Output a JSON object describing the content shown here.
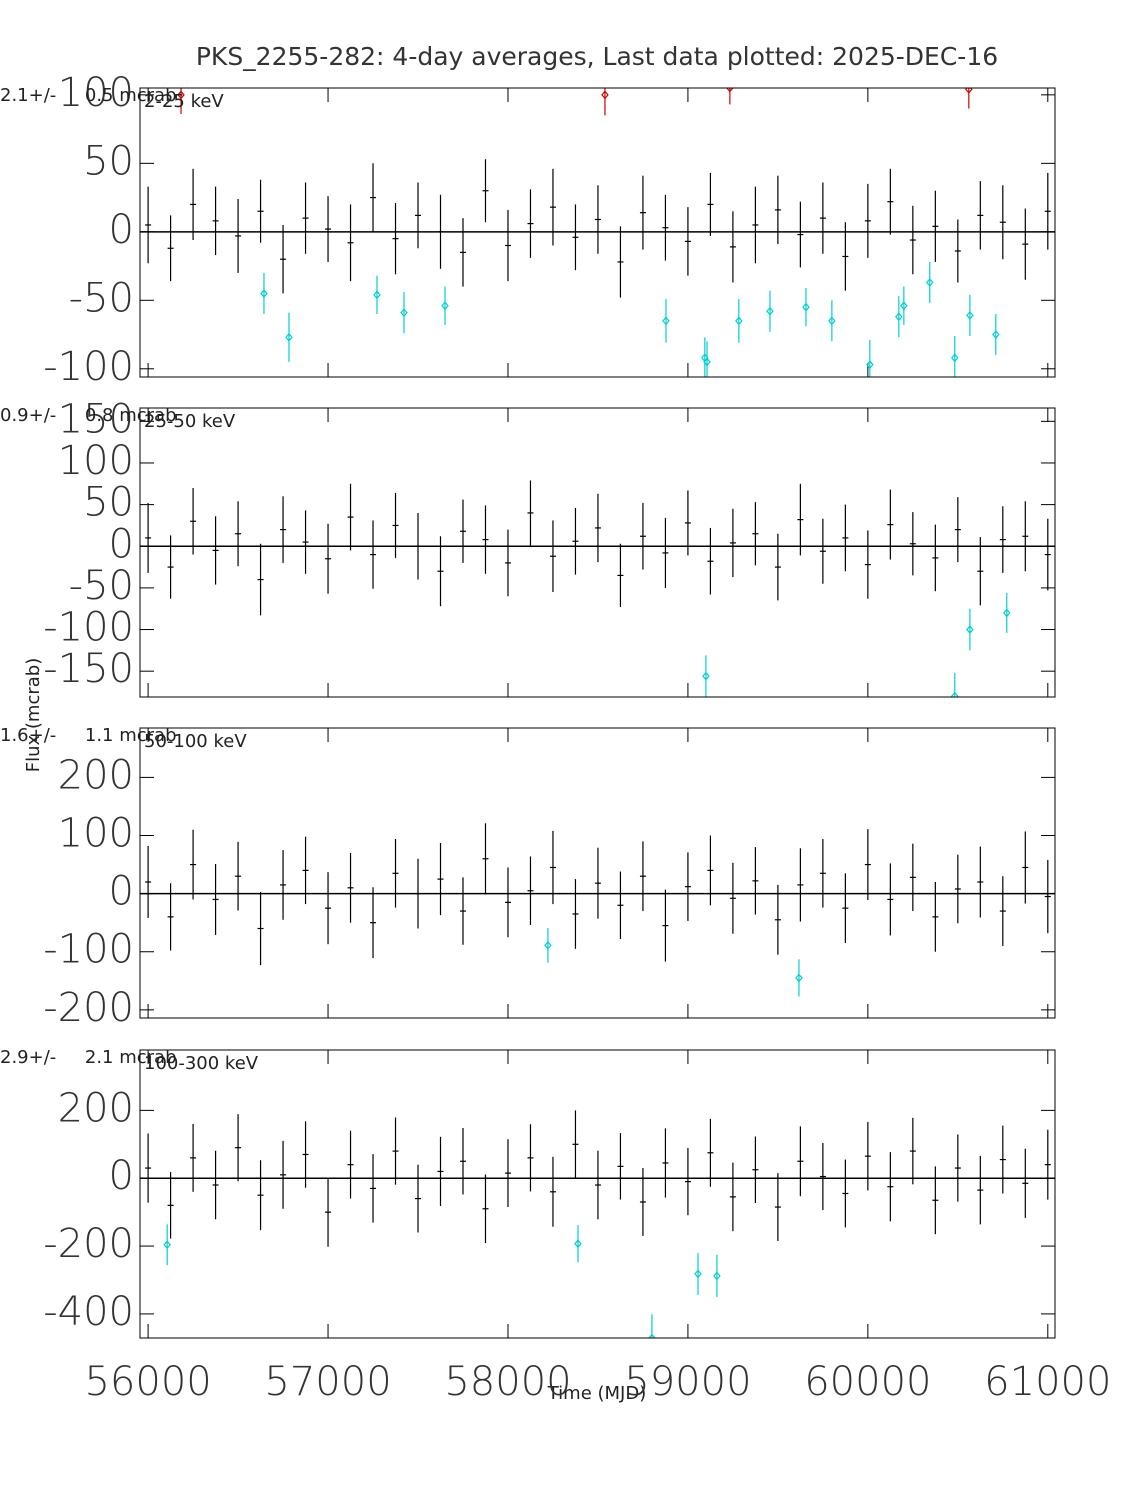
{
  "chart_data": [
    {
      "type": "errorbar",
      "title": "PKS_2255-282:  4-day averages,  Last data plotted: 2025-DEC-16",
      "band_label": "2-25 keV",
      "mean_label": "2.1+/-     0.5 mcrab",
      "xlim": [
        55955,
        61040
      ],
      "xticks": [
        56000,
        57000,
        58000,
        59000,
        60000,
        61000
      ],
      "ylim": [
        -106,
        105
      ],
      "yticks": [
        -100,
        -50,
        0,
        50,
        100
      ],
      "series": [
        {
          "color": "#000000",
          "x": [
            56000,
            56125,
            56250,
            56375,
            56500,
            56625,
            56750,
            56875,
            57000,
            57125,
            57250,
            57375,
            57500,
            57625,
            57750,
            57875,
            58000,
            58125,
            58250,
            58375,
            58500,
            58625,
            58750,
            58875,
            59000,
            59125,
            59250,
            59375,
            59500,
            59625,
            59750,
            59875,
            60000,
            60125,
            60250,
            60375,
            60500,
            60625,
            60750,
            60875,
            61000
          ],
          "values": [
            5,
            -12,
            20,
            8,
            -3,
            15,
            -20,
            10,
            2,
            -8,
            25,
            -5,
            12,
            0,
            -15,
            30,
            -10,
            6,
            18,
            -4,
            9,
            -22,
            14,
            3,
            -7,
            20,
            -11,
            5,
            16,
            -2,
            10,
            -18,
            8,
            22,
            -6,
            4,
            -14,
            12,
            7,
            -9,
            15
          ],
          "errors": [
            28,
            24,
            26,
            25,
            27,
            23,
            25,
            26,
            24,
            28,
            25,
            26,
            24,
            27,
            25,
            23,
            26,
            25,
            28,
            24,
            25,
            26,
            27,
            24,
            25,
            23,
            26,
            28,
            25,
            24,
            26,
            25,
            27,
            24,
            25,
            26,
            23,
            25,
            27,
            26,
            28
          ]
        },
        {
          "color": "#00d0d0",
          "x": [
            56644,
            56783,
            57272,
            57422,
            57650,
            58878,
            59094,
            59106,
            59283,
            59456,
            59656,
            59800,
            60011,
            60172,
            60200,
            60344,
            60483,
            60567,
            60711
          ],
          "values": [
            -45,
            -77,
            -46,
            -59,
            -54,
            -65,
            -92,
            -95,
            -65,
            -58,
            -55,
            -65,
            -97,
            -62,
            -54,
            -37,
            -92,
            -61,
            -75
          ],
          "errors": [
            15,
            18,
            14,
            15,
            14,
            16,
            15,
            15,
            16,
            15,
            14,
            15,
            18,
            15,
            14,
            15,
            16,
            15,
            15
          ]
        },
        {
          "color": "#d00000",
          "x": [
            56183,
            58539,
            59233,
            60561
          ],
          "values": [
            100,
            100,
            105,
            104
          ],
          "errors": [
            14,
            15,
            12,
            14
          ]
        }
      ]
    },
    {
      "type": "errorbar",
      "band_label": "25-50 keV",
      "mean_label": "0.9+/-     0.8 mcrab",
      "ylabel": "Flux (mcrab)",
      "xlim": [
        55955,
        61040
      ],
      "xticks": [
        56000,
        57000,
        58000,
        59000,
        60000,
        61000
      ],
      "ylim": [
        -181,
        166
      ],
      "yticks": [
        -150,
        -100,
        -50,
        0,
        50,
        100,
        150
      ],
      "series": [
        {
          "color": "#000000",
          "x": [
            56000,
            56125,
            56250,
            56375,
            56500,
            56625,
            56750,
            56875,
            57000,
            57125,
            57250,
            57375,
            57500,
            57625,
            57750,
            57875,
            58000,
            58125,
            58250,
            58375,
            58500,
            58625,
            58750,
            58875,
            59000,
            59125,
            59250,
            59375,
            59500,
            59625,
            59750,
            59875,
            60000,
            60125,
            60250,
            60375,
            60500,
            60625,
            60750,
            60875,
            61000
          ],
          "values": [
            10,
            -25,
            30,
            -5,
            15,
            -40,
            20,
            5,
            -15,
            35,
            -10,
            25,
            0,
            -30,
            18,
            8,
            -20,
            40,
            -12,
            6,
            22,
            -35,
            12,
            -8,
            28,
            -18,
            4,
            15,
            -25,
            32,
            -6,
            10,
            -22,
            26,
            3,
            -14,
            20,
            -30,
            8,
            12,
            -10
          ],
          "errors": [
            42,
            38,
            40,
            41,
            39,
            43,
            40,
            38,
            42,
            40,
            41,
            39,
            40,
            42,
            38,
            41,
            40,
            39,
            43,
            40,
            41,
            38,
            40,
            42,
            39,
            40,
            41,
            38,
            40,
            43,
            39,
            40,
            41,
            42,
            38,
            40,
            39,
            41,
            40,
            42,
            43
          ]
        },
        {
          "color": "#00d0d0",
          "x": [
            59100,
            60483,
            60567,
            60772
          ],
          "values": [
            -156,
            -180,
            -100,
            -80
          ],
          "errors": [
            25,
            28,
            25,
            24
          ]
        }
      ]
    },
    {
      "type": "errorbar",
      "band_label": "50-100 keV",
      "mean_label": "1.6+/-     1.1 mcrab",
      "xlim": [
        55955,
        61040
      ],
      "xticks": [
        56000,
        57000,
        58000,
        59000,
        60000,
        61000
      ],
      "ylim": [
        -214,
        285
      ],
      "yticks": [
        -200,
        -100,
        0,
        100,
        200
      ],
      "series": [
        {
          "color": "#000000",
          "x": [
            56000,
            56125,
            56250,
            56375,
            56500,
            56625,
            56750,
            56875,
            57000,
            57125,
            57250,
            57375,
            57500,
            57625,
            57750,
            57875,
            58000,
            58125,
            58250,
            58375,
            58500,
            58625,
            58750,
            58875,
            59000,
            59125,
            59250,
            59375,
            59500,
            59625,
            59750,
            59875,
            60000,
            60125,
            60250,
            60375,
            60500,
            60625,
            60750,
            60875,
            61000
          ],
          "values": [
            20,
            -40,
            50,
            -10,
            30,
            -60,
            15,
            40,
            -25,
            10,
            -50,
            35,
            0,
            25,
            -30,
            60,
            -15,
            5,
            45,
            -35,
            18,
            -20,
            30,
            -55,
            12,
            40,
            -8,
            22,
            -45,
            15,
            35,
            -25,
            50,
            -10,
            28,
            -40,
            8,
            20,
            -30,
            45,
            -5
          ],
          "errors": [
            62,
            58,
            60,
            61,
            59,
            63,
            60,
            58,
            62,
            60,
            61,
            59,
            60,
            62,
            58,
            61,
            60,
            59,
            63,
            60,
            61,
            58,
            60,
            62,
            59,
            60,
            61,
            58,
            60,
            63,
            59,
            60,
            61,
            62,
            58,
            60,
            59,
            61,
            60,
            62,
            63
          ]
        },
        {
          "color": "#00d0d0",
          "x": [
            58222,
            59617
          ],
          "values": [
            -89,
            -145
          ],
          "errors": [
            30,
            32
          ]
        }
      ]
    },
    {
      "type": "errorbar",
      "band_label": "100-300 keV",
      "mean_label": "2.9+/-     2.1 mcrab",
      "xlabel": "Time (MJD)",
      "xlim": [
        55955,
        61040
      ],
      "xticks": [
        56000,
        57000,
        58000,
        59000,
        60000,
        61000
      ],
      "ylim": [
        -471,
        378
      ],
      "yticks": [
        -400,
        -200,
        0,
        200
      ],
      "series": [
        {
          "color": "#000000",
          "x": [
            56000,
            56125,
            56250,
            56375,
            56500,
            56625,
            56750,
            56875,
            57000,
            57125,
            57250,
            57375,
            57500,
            57625,
            57750,
            57875,
            58000,
            58125,
            58250,
            58375,
            58500,
            58625,
            58750,
            58875,
            59000,
            59125,
            59250,
            59375,
            59500,
            59625,
            59750,
            59875,
            60000,
            60125,
            60250,
            60375,
            60500,
            60625,
            60750,
            60875,
            61000
          ],
          "values": [
            30,
            -80,
            60,
            -20,
            90,
            -50,
            10,
            70,
            -100,
            40,
            -30,
            80,
            -60,
            20,
            50,
            -90,
            15,
            60,
            -40,
            100,
            -20,
            35,
            -70,
            45,
            -10,
            75,
            -55,
            25,
            -85,
            50,
            5,
            -45,
            65,
            -25,
            80,
            -65,
            30,
            -35,
            55,
            -15,
            40
          ],
          "errors": [
            102,
            98,
            100,
            101,
            99,
            103,
            100,
            98,
            102,
            100,
            101,
            99,
            100,
            102,
            98,
            101,
            100,
            99,
            103,
            100,
            101,
            98,
            100,
            102,
            99,
            100,
            101,
            98,
            100,
            103,
            99,
            100,
            101,
            102,
            98,
            100,
            99,
            101,
            100,
            102,
            103
          ]
        },
        {
          "color": "#00d0d0",
          "x": [
            56106,
            58389,
            58800,
            59056,
            59161
          ],
          "values": [
            -196,
            -193,
            -471,
            -282,
            -288
          ],
          "errors": [
            60,
            55,
            70,
            62,
            62
          ]
        }
      ]
    }
  ]
}
